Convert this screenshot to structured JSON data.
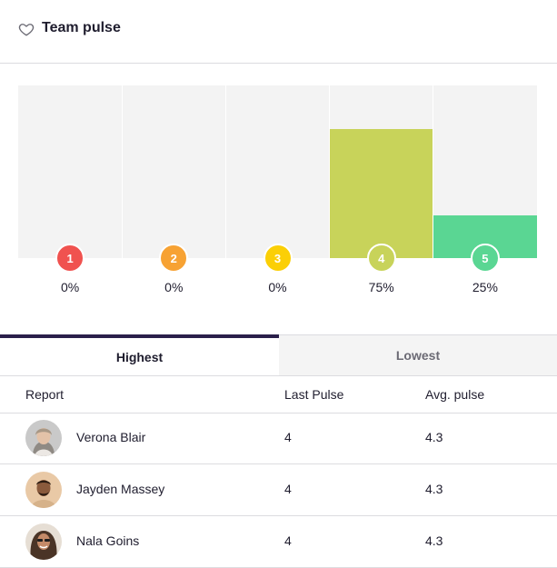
{
  "header": {
    "title": "Team pulse",
    "icon": "heart-outline-icon"
  },
  "chart_data": {
    "type": "bar",
    "categories": [
      "1",
      "2",
      "3",
      "4",
      "5"
    ],
    "values": [
      0,
      0,
      0,
      75,
      25
    ],
    "value_labels": [
      "0%",
      "0%",
      "0%",
      "75%",
      "25%"
    ],
    "colors": [
      "#f0524f",
      "#f7a233",
      "#fbcf06",
      "#c8d35a",
      "#5ad693"
    ],
    "ylim": [
      0,
      100
    ]
  },
  "tabs": {
    "highest": "Highest",
    "lowest": "Lowest",
    "active": "Highest"
  },
  "table": {
    "headers": {
      "report": "Report",
      "last": "Last Pulse",
      "avg": "Avg. pulse"
    },
    "rows": [
      {
        "name": "Verona Blair",
        "last": "4",
        "avg": "4.3"
      },
      {
        "name": "Jayden Massey",
        "last": "4",
        "avg": "4.3"
      },
      {
        "name": "Nala Goins",
        "last": "4",
        "avg": "4.3"
      }
    ]
  }
}
